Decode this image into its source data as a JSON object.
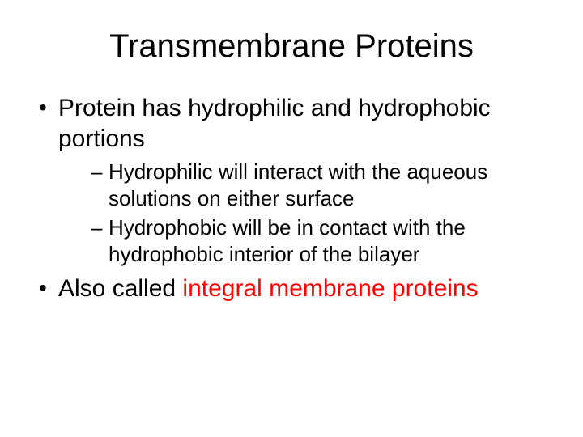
{
  "title": "Transmembrane Proteins",
  "bullets": [
    {
      "text": "Protein has hydrophilic and hydrophobic portions",
      "subs": [
        "Hydrophilic will interact with the aqueous solutions on either surface",
        "Hydrophobic will be in contact with the hydrophobic interior of the bilayer"
      ]
    },
    {
      "prefix": "Also called ",
      "highlight": "integral membrane proteins",
      "subs": []
    }
  ],
  "colors": {
    "background": "#ffffff",
    "text": "#000000",
    "highlight": "#ff0000"
  },
  "typography": {
    "font_family": "Comic Sans MS",
    "title_fontsize": 40,
    "bullet_fontsize": 30,
    "sub_fontsize": 26
  }
}
